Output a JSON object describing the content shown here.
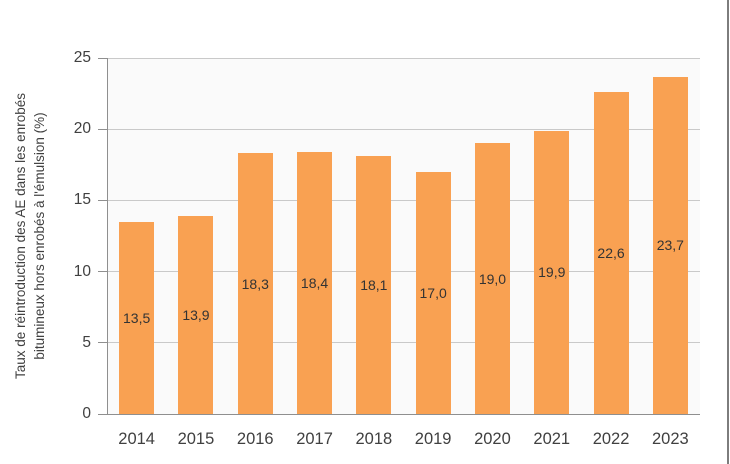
{
  "figure": {
    "background": "#ffffff",
    "right_edge_color": "#7d7d7d"
  },
  "chart_data": {
    "type": "bar",
    "title": "",
    "categories": [
      "2014",
      "2015",
      "2016",
      "2017",
      "2018",
      "2019",
      "2020",
      "2021",
      "2022",
      "2023"
    ],
    "values": [
      13.5,
      13.9,
      18.3,
      18.4,
      18.1,
      17.0,
      19.0,
      19.9,
      22.6,
      23.7
    ],
    "value_labels": [
      "13,5",
      "13,9",
      "18,3",
      "18,4",
      "18,1",
      "17,0",
      "19,0",
      "19,9",
      "22,6",
      "23,7"
    ],
    "xlabel": "",
    "ylabel": "Taux de réintroduction des AE dans les enrobés bitumineux hors enrobés à l'émulsion (%)",
    "ylabel_lines": [
      "Taux de réintroduction des AE dans les enrobés",
      "bitumineux hors enrobés à l'émulsion (%)"
    ],
    "ylim": [
      0,
      25
    ],
    "yticks": [
      0,
      5,
      10,
      15,
      20,
      25
    ],
    "grid": "horizontal",
    "legend": "none",
    "bar_color": "#F9A152",
    "value_label_color": "#333333",
    "tick_label_color": "#404040",
    "axis_line_color": "#8f8f8f",
    "grid_line_color": "#c9c9c9",
    "plot_background": "#fafafa"
  }
}
